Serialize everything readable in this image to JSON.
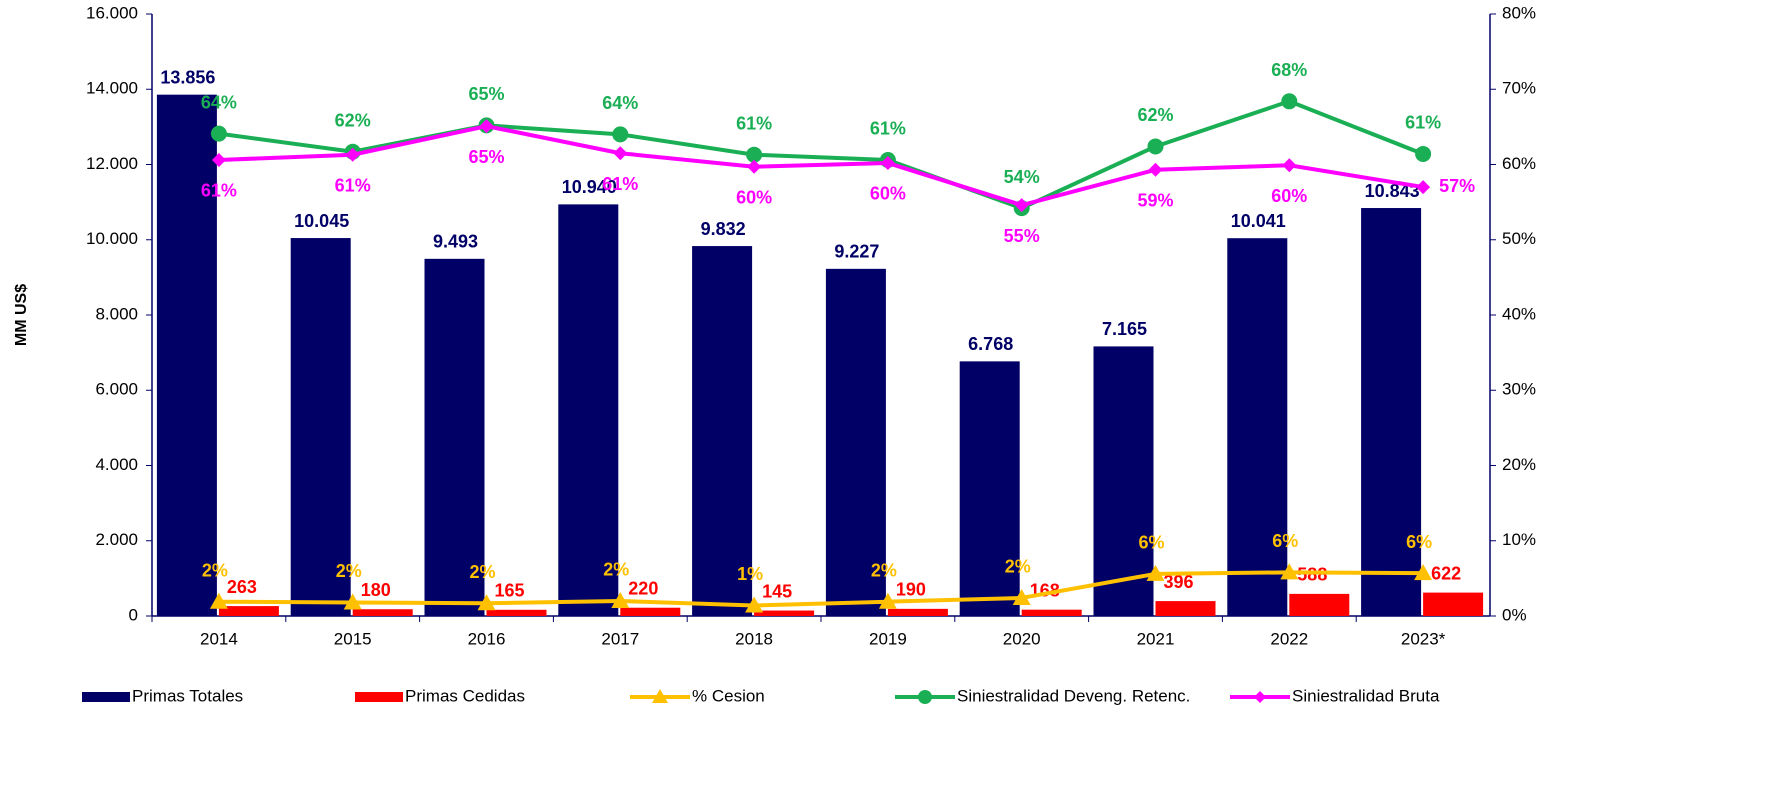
{
  "chart_data": {
    "type": "bar",
    "y_label": "MM US$",
    "categories": [
      "2014",
      "2015",
      "2016",
      "2017",
      "2018",
      "2019",
      "2020",
      "2021",
      "2022",
      "2023*"
    ],
    "series": [
      {
        "name": "Primas Totales",
        "type": "bar",
        "color": "#000066",
        "values": [
          13856,
          10045,
          9493,
          10940,
          9832,
          9227,
          6768,
          7165,
          10041,
          10843
        ],
        "value_labels": [
          "13.856",
          "10.045",
          "9.493",
          "10.940",
          "9.832",
          "9.227",
          "6.768",
          "7.165",
          "10.041",
          "10.843"
        ]
      },
      {
        "name": "Primas Cedidas",
        "type": "bar",
        "color": "#ff0000",
        "values": [
          263,
          180,
          165,
          220,
          145,
          190,
          168,
          396,
          588,
          622
        ]
      },
      {
        "name": "% Cesion",
        "type": "line",
        "marker": "triangle",
        "axis": "y2",
        "color": "#ffc000",
        "values": [
          1.9,
          1.8,
          1.7,
          2.0,
          1.4,
          1.9,
          2.4,
          5.6,
          5.8,
          5.7
        ],
        "value_labels": [
          "2%",
          "2%",
          "2%",
          "2%",
          "1%",
          "2%",
          "2%",
          "6%",
          "6%",
          "6%"
        ]
      },
      {
        "name": "Siniestralidad Deveng. Retenc.",
        "type": "line",
        "marker": "circle",
        "axis": "y2",
        "color": "#1aaf54",
        "values": [
          64.1,
          61.7,
          65.2,
          64.0,
          61.3,
          60.6,
          54.2,
          62.4,
          68.4,
          61.4
        ],
        "value_labels": [
          "64%",
          "62%",
          "65%",
          "64%",
          "61%",
          "61%",
          "54%",
          "62%",
          "68%",
          "61%"
        ]
      },
      {
        "name": "Siniestralidad Bruta",
        "type": "line",
        "marker": "diamond",
        "axis": "y2",
        "color": "#ff00ff",
        "values": [
          60.6,
          61.3,
          65.1,
          61.5,
          59.7,
          60.2,
          54.6,
          59.3,
          59.9,
          57.0
        ],
        "value_labels": [
          "61%",
          "61%",
          "65%",
          "61%",
          "60%",
          "60%",
          "55%",
          "59%",
          "60%",
          "57%"
        ]
      }
    ],
    "ylim": [
      0,
      16000
    ],
    "yticks": [
      0,
      {
        "value": 2000,
        "label": "2.000"
      },
      {
        "value": 4000,
        "label": "4.000"
      },
      {
        "value": 6000,
        "label": "6.000"
      },
      {
        "value": 8000,
        "label": "8.000"
      },
      {
        "value": 10000,
        "label": "10.000"
      },
      {
        "value": 12000,
        "label": "12.000"
      },
      {
        "value": 14000,
        "label": "14.000"
      },
      {
        "value": 16000,
        "label": "16.000"
      }
    ],
    "y2lim": [
      0,
      80
    ],
    "y2ticks": [
      {
        "value": 0,
        "label": "0%"
      },
      {
        "value": 10,
        "label": "10%"
      },
      {
        "value": 20,
        "label": "20%"
      },
      {
        "value": 30,
        "label": "30%"
      },
      {
        "value": 40,
        "label": "40%"
      },
      {
        "value": 50,
        "label": "50%"
      },
      {
        "value": 60,
        "label": "60%"
      },
      {
        "value": 70,
        "label": "70%"
      },
      {
        "value": 80,
        "label": "80%"
      }
    ],
    "legend": "bottom",
    "grid": false
  }
}
